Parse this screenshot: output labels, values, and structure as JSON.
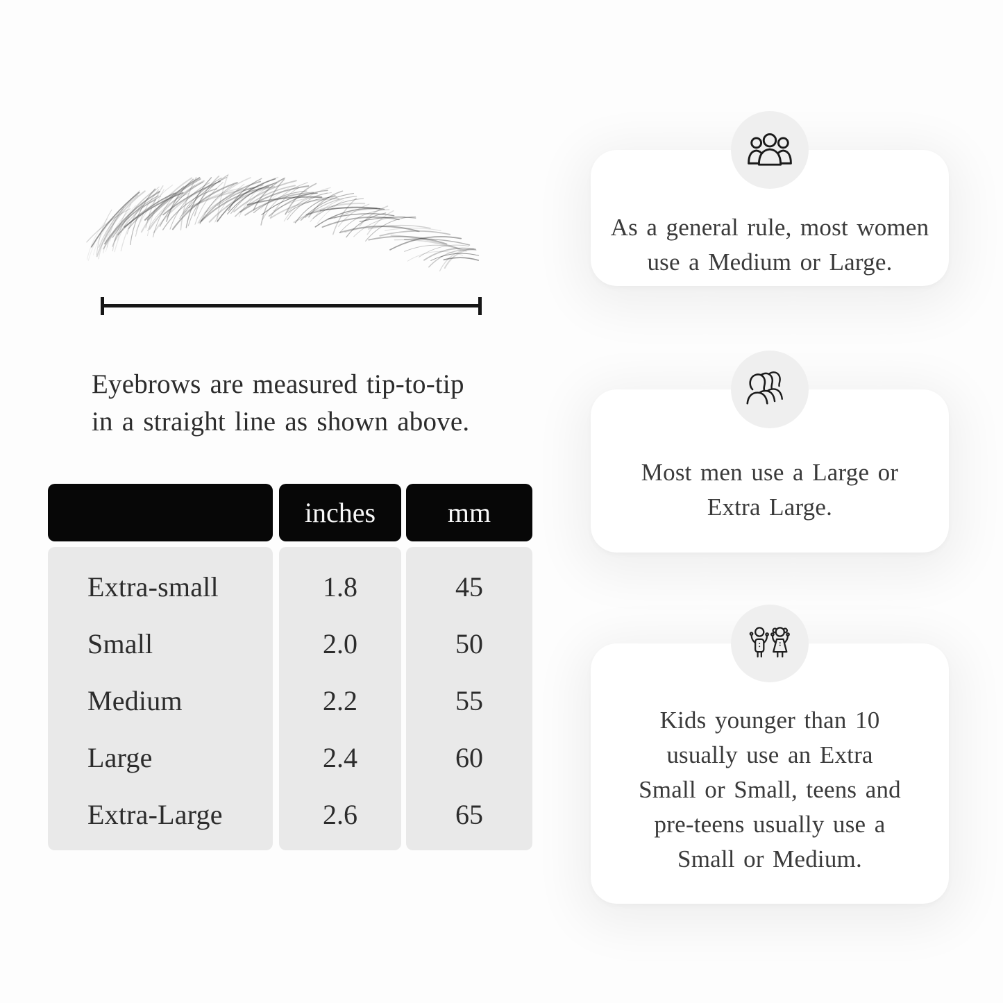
{
  "diagram": {
    "illustration_icon": "eyebrow-sketch-icon",
    "measure_line_icon": "tip-to-tip-measure-line",
    "caption": {
      "line1": "Eyebrows are measured tip-to-tip",
      "line2": "in a straight line as shown above."
    }
  },
  "table": {
    "headers": {
      "size": "",
      "inches": "inches",
      "mm": "mm"
    },
    "rows": [
      {
        "label": "Extra-small",
        "inches": "1.8",
        "mm": "45"
      },
      {
        "label": "Small",
        "inches": "2.0",
        "mm": "50"
      },
      {
        "label": "Medium",
        "inches": "2.2",
        "mm": "55"
      },
      {
        "label": "Large",
        "inches": "2.4",
        "mm": "60"
      },
      {
        "label": "Extra-Large",
        "inches": "2.6",
        "mm": "65"
      }
    ]
  },
  "cards": [
    {
      "icon": "women-group-icon",
      "lines": [
        "As a general rule, most women",
        "use a Medium or Large."
      ]
    },
    {
      "icon": "men-group-icon",
      "lines": [
        "Most men use a Large or",
        "Extra Large."
      ]
    },
    {
      "icon": "kids-icon",
      "lines": [
        "Kids younger than 10",
        "usually use an Extra",
        "Small or Small, teens and",
        "pre-teens usually use a",
        "Small or Medium."
      ]
    }
  ],
  "colors": {
    "page_bg": "#fdfdfd",
    "table_header_bg": "#070707",
    "table_header_text": "#f7f7f7",
    "table_body_bg": "#e9e9e9",
    "card_bg": "#ffffff",
    "icon_circle_bg": "#efefef",
    "line_color": "#161616",
    "text_color": "#2c2c2c"
  }
}
